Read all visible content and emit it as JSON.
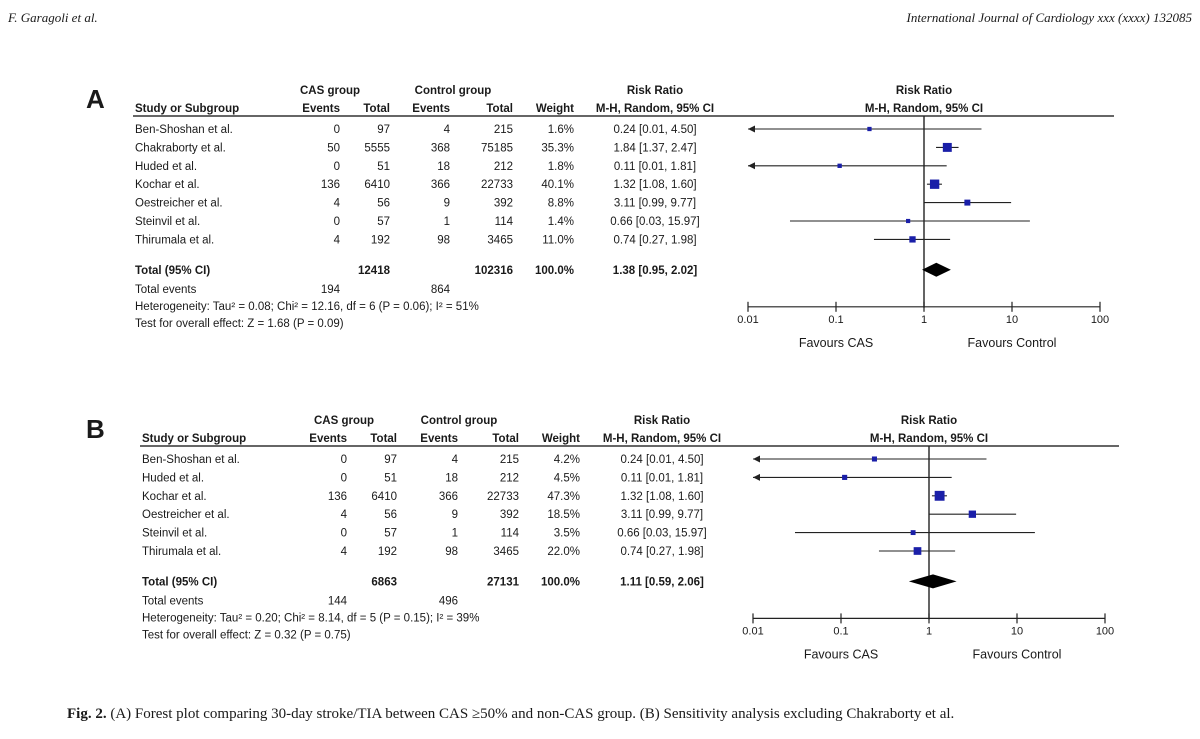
{
  "header": {
    "left": "F. Garagoli et al.",
    "right": "International Journal of Cardiology xxx (xxxx) 132085"
  },
  "caption": {
    "label": "Fig. 2.",
    "text": "(A) Forest plot comparing 30-day stroke/TIA between CAS ≥50% and non-CAS group. (B) Sensitivity analysis excluding Chakraborty et al."
  },
  "chart_data": [
    {
      "type": "forest",
      "panel": "A",
      "group_headers": {
        "cas": "CAS group",
        "control": "Control group",
        "rr": "Risk Ratio",
        "plot": "Risk Ratio"
      },
      "columns": [
        "Study or Subgroup",
        "Events",
        "Total",
        "Events",
        "Total",
        "Weight",
        "M-H, Random, 95% CI",
        "M-H, Random, 95% CI"
      ],
      "studies": [
        {
          "name": "Ben-Shoshan et al.",
          "cas_events": "0",
          "cas_total": "97",
          "ctrl_events": "4",
          "ctrl_total": "215",
          "weight": "1.6%",
          "ci_text": "0.24 [0.01, 4.50]",
          "rr": 0.24,
          "lo": 0.01,
          "hi": 4.5
        },
        {
          "name": "Chakraborty et al.",
          "cas_events": "50",
          "cas_total": "5555",
          "ctrl_events": "368",
          "ctrl_total": "75185",
          "weight": "35.3%",
          "ci_text": "1.84 [1.37, 2.47]",
          "rr": 1.84,
          "lo": 1.37,
          "hi": 2.47
        },
        {
          "name": "Huded et al.",
          "cas_events": "0",
          "cas_total": "51",
          "ctrl_events": "18",
          "ctrl_total": "212",
          "weight": "1.8%",
          "ci_text": "0.11 [0.01, 1.81]",
          "rr": 0.11,
          "lo": 0.01,
          "hi": 1.81
        },
        {
          "name": "Kochar et al.",
          "cas_events": "136",
          "cas_total": "6410",
          "ctrl_events": "366",
          "ctrl_total": "22733",
          "weight": "40.1%",
          "ci_text": "1.32 [1.08, 1.60]",
          "rr": 1.32,
          "lo": 1.08,
          "hi": 1.6
        },
        {
          "name": "Oestreicher et al.",
          "cas_events": "4",
          "cas_total": "56",
          "ctrl_events": "9",
          "ctrl_total": "392",
          "weight": "8.8%",
          "ci_text": "3.11 [0.99, 9.77]",
          "rr": 3.11,
          "lo": 0.99,
          "hi": 9.77
        },
        {
          "name": "Steinvil et al.",
          "cas_events": "0",
          "cas_total": "57",
          "ctrl_events": "1",
          "ctrl_total": "114",
          "weight": "1.4%",
          "ci_text": "0.66 [0.03, 15.97]",
          "rr": 0.66,
          "lo": 0.03,
          "hi": 15.97
        },
        {
          "name": "Thirumala et al.",
          "cas_events": "4",
          "cas_total": "192",
          "ctrl_events": "98",
          "ctrl_total": "3465",
          "weight": "11.0%",
          "ci_text": "0.74 [0.27, 1.98]",
          "rr": 0.74,
          "lo": 0.27,
          "hi": 1.98
        }
      ],
      "total": {
        "label": "Total (95% CI)",
        "cas_total": "12418",
        "ctrl_total": "102316",
        "weight": "100.0%",
        "ci_text": "1.38 [0.95, 2.02]",
        "rr": 1.38,
        "lo": 0.95,
        "hi": 2.02
      },
      "total_events": {
        "label": "Total events",
        "cas": "194",
        "ctrl": "864"
      },
      "heterogeneity": "Heterogeneity: Tau² = 0.08; Chi² = 12.16, df = 6 (P = 0.06); I² = 51%",
      "overall_effect": "Test for overall effect: Z = 1.68 (P = 0.09)",
      "axis": {
        "scale": "log",
        "min": 0.01,
        "max": 100,
        "ticks": [
          "0.01",
          "0.1",
          "1",
          "10",
          "100"
        ],
        "ticks_v": [
          0.01,
          0.1,
          1,
          10,
          100
        ],
        "left_label": "Favours CAS",
        "right_label": "Favours Control"
      },
      "colors": {
        "marker": "#1a1fa8",
        "diamond": "#000000"
      }
    },
    {
      "type": "forest",
      "panel": "B",
      "group_headers": {
        "cas": "CAS group",
        "control": "Control group",
        "rr": "Risk Ratio",
        "plot": "Risk Ratio"
      },
      "columns": [
        "Study or Subgroup",
        "Events",
        "Total",
        "Events",
        "Total",
        "Weight",
        "M-H, Random, 95% CI",
        "M-H, Random, 95% CI"
      ],
      "studies": [
        {
          "name": "Ben-Shoshan et al.",
          "cas_events": "0",
          "cas_total": "97",
          "ctrl_events": "4",
          "ctrl_total": "215",
          "weight": "4.2%",
          "ci_text": "0.24 [0.01, 4.50]",
          "rr": 0.24,
          "lo": 0.01,
          "hi": 4.5
        },
        {
          "name": "Huded et al.",
          "cas_events": "0",
          "cas_total": "51",
          "ctrl_events": "18",
          "ctrl_total": "212",
          "weight": "4.5%",
          "ci_text": "0.11 [0.01, 1.81]",
          "rr": 0.11,
          "lo": 0.01,
          "hi": 1.81
        },
        {
          "name": "Kochar et al.",
          "cas_events": "136",
          "cas_total": "6410",
          "ctrl_events": "366",
          "ctrl_total": "22733",
          "weight": "47.3%",
          "ci_text": "1.32 [1.08, 1.60]",
          "rr": 1.32,
          "lo": 1.08,
          "hi": 1.6
        },
        {
          "name": "Oestreicher et al.",
          "cas_events": "4",
          "cas_total": "56",
          "ctrl_events": "9",
          "ctrl_total": "392",
          "weight": "18.5%",
          "ci_text": "3.11 [0.99, 9.77]",
          "rr": 3.11,
          "lo": 0.99,
          "hi": 9.77
        },
        {
          "name": "Steinvil et al.",
          "cas_events": "0",
          "cas_total": "57",
          "ctrl_events": "1",
          "ctrl_total": "114",
          "weight": "3.5%",
          "ci_text": "0.66 [0.03, 15.97]",
          "rr": 0.66,
          "lo": 0.03,
          "hi": 15.97
        },
        {
          "name": "Thirumala et al.",
          "cas_events": "4",
          "cas_total": "192",
          "ctrl_events": "98",
          "ctrl_total": "3465",
          "weight": "22.0%",
          "ci_text": "0.74 [0.27, 1.98]",
          "rr": 0.74,
          "lo": 0.27,
          "hi": 1.98
        }
      ],
      "total": {
        "label": "Total (95% CI)",
        "cas_total": "6863",
        "ctrl_total": "27131",
        "weight": "100.0%",
        "ci_text": "1.11 [0.59, 2.06]",
        "rr": 1.11,
        "lo": 0.59,
        "hi": 2.06
      },
      "total_events": {
        "label": "Total events",
        "cas": "144",
        "ctrl": "496"
      },
      "heterogeneity": "Heterogeneity: Tau² = 0.20; Chi² = 8.14, df = 5 (P = 0.15); I² = 39%",
      "overall_effect": "Test for overall effect: Z = 0.32 (P = 0.75)",
      "axis": {
        "scale": "log",
        "min": 0.01,
        "max": 100,
        "ticks": [
          "0.01",
          "0.1",
          "1",
          "10",
          "100"
        ],
        "ticks_v": [
          0.01,
          0.1,
          1,
          10,
          100
        ],
        "left_label": "Favours CAS",
        "right_label": "Favours Control"
      },
      "colors": {
        "marker": "#1a1fa8",
        "diamond": "#000000"
      }
    }
  ]
}
